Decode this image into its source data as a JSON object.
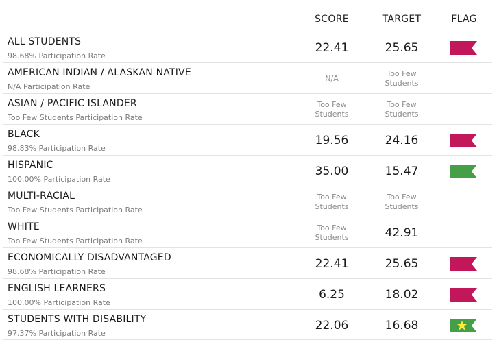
{
  "header": {
    "score": "SCORE",
    "target": "TARGET",
    "flag": "FLAG"
  },
  "colors": {
    "red_flag": "#c2185b",
    "green_flag": "#43a047",
    "star": "#ffeb3b"
  },
  "rows": [
    {
      "name": "ALL STUDENTS",
      "rate": "98.68% Participation Rate",
      "score": "22.41",
      "score_small": false,
      "target": "25.65",
      "target_small": false,
      "flag": "red"
    },
    {
      "name": "AMERICAN INDIAN / ALASKAN NATIVE",
      "rate": "N/A Participation Rate",
      "score": "N/A",
      "score_small": true,
      "target": "Too Few\nStudents",
      "target_small": true,
      "flag": "none"
    },
    {
      "name": "ASIAN / PACIFIC ISLANDER",
      "rate": "Too Few Students Participation Rate",
      "score": "Too Few\nStudents",
      "score_small": true,
      "target": "Too Few\nStudents",
      "target_small": true,
      "flag": "none"
    },
    {
      "name": "BLACK",
      "rate": "98.83% Participation Rate",
      "score": "19.56",
      "score_small": false,
      "target": "24.16",
      "target_small": false,
      "flag": "red"
    },
    {
      "name": "HISPANIC",
      "rate": "100.00% Participation Rate",
      "score": "35.00",
      "score_small": false,
      "target": "15.47",
      "target_small": false,
      "flag": "green"
    },
    {
      "name": "MULTI-RACIAL",
      "rate": "Too Few Students Participation Rate",
      "score": "Too Few\nStudents",
      "score_small": true,
      "target": "Too Few\nStudents",
      "target_small": true,
      "flag": "none"
    },
    {
      "name": "WHITE",
      "rate": "Too Few Students Participation Rate",
      "score": "Too Few\nStudents",
      "score_small": true,
      "target": "42.91",
      "target_small": false,
      "flag": "none"
    },
    {
      "name": "ECONOMICALLY DISADVANTAGED",
      "rate": "98.68% Participation Rate",
      "score": "22.41",
      "score_small": false,
      "target": "25.65",
      "target_small": false,
      "flag": "red"
    },
    {
      "name": "ENGLISH LEARNERS",
      "rate": "100.00% Participation Rate",
      "score": "6.25",
      "score_small": false,
      "target": "18.02",
      "target_small": false,
      "flag": "red"
    },
    {
      "name": "STUDENTS WITH DISABILITY",
      "rate": "97.37% Participation Rate",
      "score": "22.06",
      "score_small": false,
      "target": "16.68",
      "target_small": false,
      "flag": "green-star"
    }
  ]
}
